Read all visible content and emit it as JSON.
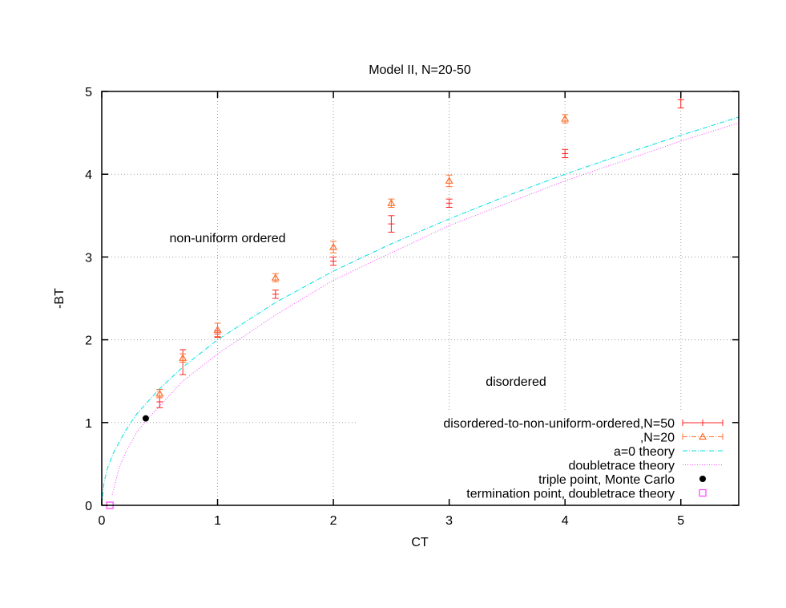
{
  "chart_data": {
    "type": "scatter",
    "title": "Model II, N=20-50",
    "xlabel": "CT",
    "ylabel": "-BT",
    "xlim": [
      0,
      5.5
    ],
    "ylim": [
      0,
      5
    ],
    "xticks": [
      "0",
      "1",
      "2",
      "3",
      "4",
      "5"
    ],
    "yticks": [
      "0",
      "1",
      "2",
      "3",
      "4",
      "5"
    ],
    "grid": true,
    "legend_position": "bottom-right",
    "annotations": [
      {
        "text": "non-uniform ordered",
        "x": 1.55,
        "y": 3.22
      },
      {
        "text": "disordered",
        "x": 3.5,
        "y": 1.5
      }
    ],
    "series": [
      {
        "name": "disordered-to-non-uniform-ordered,N=50",
        "style": "errorbars",
        "color": "#ff2020",
        "x": [
          0.5,
          0.7,
          1.0,
          1.5,
          2.0,
          2.5,
          3.0,
          4.0,
          5.0
        ],
        "y": [
          1.25,
          1.73,
          2.07,
          2.55,
          2.95,
          3.4,
          3.65,
          4.25,
          4.9
        ],
        "err": [
          0.07,
          0.15,
          0.04,
          0.05,
          0.05,
          0.1,
          0.05,
          0.05,
          0.1
        ]
      },
      {
        "name": ",N=20",
        "style": "errorbars-triangle",
        "color": "#ff7030",
        "x": [
          0.5,
          0.7,
          1.0,
          1.5,
          2.0,
          2.5,
          3.0,
          4.0
        ],
        "y": [
          1.35,
          1.78,
          2.12,
          2.75,
          3.12,
          3.65,
          3.92,
          4.67
        ],
        "err": [
          0.05,
          0.05,
          0.08,
          0.05,
          0.07,
          0.05,
          0.07,
          0.05
        ]
      },
      {
        "name": "a=0 theory",
        "style": "line-dashdot",
        "color": "#00e0e0",
        "x": [
          0,
          0.02,
          0.05,
          0.1,
          0.2,
          0.3,
          0.5,
          0.7,
          1,
          1.5,
          2,
          2.5,
          3,
          3.5,
          4,
          4.5,
          5,
          5.5
        ],
        "y": [
          0,
          0.28,
          0.45,
          0.63,
          0.89,
          1.1,
          1.41,
          1.67,
          2.0,
          2.45,
          2.83,
          3.16,
          3.46,
          3.74,
          4.0,
          4.24,
          4.47,
          4.69
        ]
      },
      {
        "name": "doubletrace theory",
        "style": "line-dotted",
        "color": "#ff40ff",
        "x": [
          0.09,
          0.15,
          0.2,
          0.3,
          0.4,
          0.5,
          0.7,
          1,
          1.5,
          2,
          2.5,
          3,
          4,
          5,
          5.5
        ],
        "y": [
          0.13,
          0.45,
          0.62,
          0.88,
          1.05,
          1.2,
          1.5,
          1.83,
          2.3,
          2.72,
          3.05,
          3.38,
          3.92,
          4.4,
          4.62
        ]
      },
      {
        "name": "triple point, Monte Carlo",
        "style": "point-filled-circle",
        "color": "#000000",
        "x": [
          0.38
        ],
        "y": [
          1.05
        ]
      },
      {
        "name": "termination point, doubletrace theory",
        "style": "point-open-square",
        "color": "#ff40ff",
        "x": [
          0.07
        ],
        "y": [
          0
        ]
      }
    ]
  }
}
